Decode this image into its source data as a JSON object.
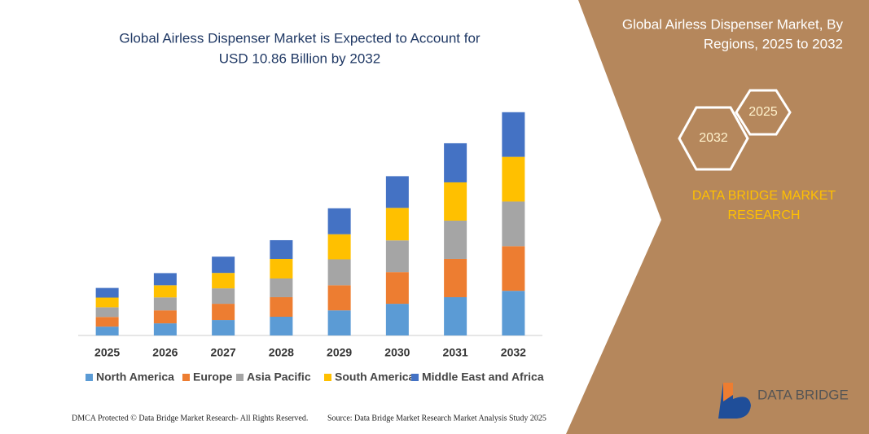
{
  "chart_data": {
    "type": "bar",
    "stacked": true,
    "title_lines": [
      "Global Airless Dispenser Market is Expected to Account for",
      "USD 10.86 Billion by 2032"
    ],
    "categories": [
      "2025",
      "2026",
      "2027",
      "2028",
      "2029",
      "2030",
      "2031",
      "2032"
    ],
    "series": [
      {
        "name": "North America",
        "color": "#5b9bd5",
        "values": [
          0.43,
          0.59,
          0.75,
          0.91,
          1.22,
          1.54,
          1.86,
          2.17
        ]
      },
      {
        "name": "Europe",
        "color": "#ed7d31",
        "values": [
          0.47,
          0.63,
          0.79,
          0.95,
          1.22,
          1.54,
          1.86,
          2.17
        ]
      },
      {
        "name": "Asia Pacific",
        "color": "#a5a5a5",
        "values": [
          0.47,
          0.63,
          0.75,
          0.91,
          1.26,
          1.54,
          1.86,
          2.17
        ]
      },
      {
        "name": "South America",
        "color": "#ffc000",
        "values": [
          0.47,
          0.59,
          0.75,
          0.95,
          1.22,
          1.58,
          1.86,
          2.17
        ]
      },
      {
        "name": "Middle East and Africa",
        "color": "#4472c4",
        "values": [
          0.47,
          0.59,
          0.79,
          0.91,
          1.26,
          1.54,
          1.9,
          2.17
        ]
      }
    ],
    "ylim": [
      0,
      11
    ],
    "grid": false,
    "legend": "bottom"
  },
  "panel": {
    "title_lines": [
      "Global Airless Dispenser Market, By",
      "Regions, 2025 to 2032"
    ],
    "hex_start": "2025",
    "hex_end": "2032",
    "brand_lines": [
      "DATA BRIDGE MARKET",
      "RESEARCH"
    ],
    "logo": "DATA BRIDGE"
  },
  "footer": {
    "left": "DMCA Protected © Data Bridge Market Research-  All Rights Reserved.",
    "right": "Source: Data Bridge Market Research  Market Analysis Study 2025"
  }
}
